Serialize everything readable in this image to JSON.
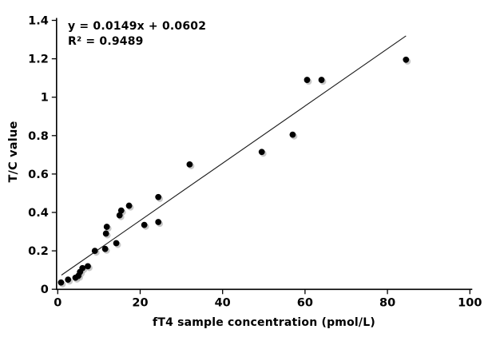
{
  "chart_data": {
    "type": "scatter",
    "title": "",
    "xlabel": "fT4 sample concentration (pmol/L)",
    "ylabel": "T/C value",
    "xlim": [
      0,
      100
    ],
    "ylim": [
      0,
      1.4
    ],
    "x_ticks": [
      0,
      20,
      40,
      60,
      80,
      100
    ],
    "x_tick_labels": [
      "0",
      "20",
      "40",
      "60",
      "80",
      "100"
    ],
    "y_ticks": [
      0,
      0.2,
      0.4,
      0.6,
      0.8,
      1,
      1.2,
      1.4
    ],
    "y_tick_labels": [
      "0",
      "0.2",
      "0.4",
      "0.6",
      "0.8",
      "1",
      "1.2",
      "1.4"
    ],
    "grid": false,
    "legend": false,
    "annotation": {
      "line1": "y = 0.0149x + 0.0602",
      "line2": "R² = 0.9489"
    },
    "trendline": {
      "slope": 0.0149,
      "intercept": 0.0602,
      "x_start": 0.9,
      "x_end": 84.5
    },
    "points": [
      [
        0.8,
        0.035
      ],
      [
        2.5,
        0.05
      ],
      [
        4.3,
        0.06
      ],
      [
        5.0,
        0.07
      ],
      [
        5.4,
        0.09
      ],
      [
        6.0,
        0.11
      ],
      [
        7.3,
        0.12
      ],
      [
        9.0,
        0.2
      ],
      [
        11.5,
        0.21
      ],
      [
        14.2,
        0.24
      ],
      [
        11.7,
        0.29
      ],
      [
        11.9,
        0.325
      ],
      [
        15.0,
        0.385
      ],
      [
        15.4,
        0.41
      ],
      [
        17.3,
        0.435
      ],
      [
        21.0,
        0.335
      ],
      [
        24.4,
        0.35
      ],
      [
        24.4,
        0.48
      ],
      [
        32.0,
        0.65
      ],
      [
        49.5,
        0.715
      ],
      [
        57.0,
        0.805
      ],
      [
        60.5,
        1.09
      ],
      [
        64.0,
        1.09
      ],
      [
        84.5,
        1.195
      ]
    ],
    "colors": {
      "marker": "#000000",
      "marker_shadow": "#9a9a9a",
      "axis": "#000000",
      "trend_line": "#1a1a1a",
      "background": "#ffffff"
    }
  }
}
